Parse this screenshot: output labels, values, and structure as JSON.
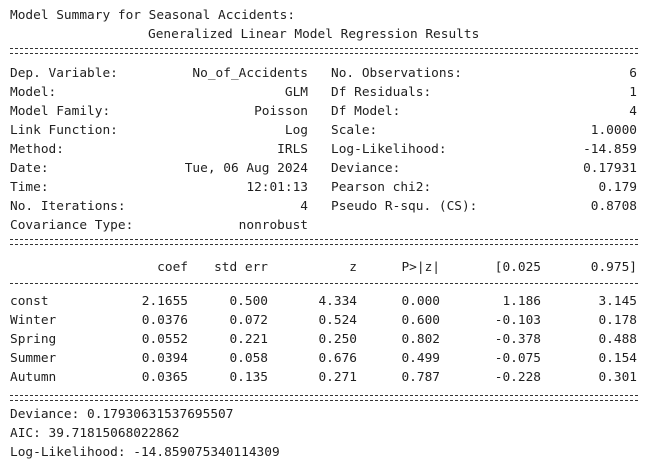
{
  "header": {
    "line1": "Model Summary for Seasonal Accidents:",
    "line2": "Generalized Linear Model Regression Results"
  },
  "info_left": [
    {
      "label": "Dep. Variable:",
      "value": "No_of_Accidents"
    },
    {
      "label": "Model:",
      "value": "GLM"
    },
    {
      "label": "Model Family:",
      "value": "Poisson"
    },
    {
      "label": "Link Function:",
      "value": "Log"
    },
    {
      "label": "Method:",
      "value": "IRLS"
    },
    {
      "label": "Date:",
      "value": "Tue, 06 Aug 2024"
    },
    {
      "label": "Time:",
      "value": "12:01:13"
    },
    {
      "label": "No. Iterations:",
      "value": "4"
    },
    {
      "label": "Covariance Type:",
      "value": "nonrobust"
    }
  ],
  "info_right": [
    {
      "label": "No. Observations:",
      "value": "6"
    },
    {
      "label": "Df Residuals:",
      "value": "1"
    },
    {
      "label": "Df Model:",
      "value": "4"
    },
    {
      "label": "Scale:",
      "value": "1.0000"
    },
    {
      "label": "Log-Likelihood:",
      "value": "-14.859"
    },
    {
      "label": "Deviance:",
      "value": "0.17931"
    },
    {
      "label": "Pearson chi2:",
      "value": "0.179"
    },
    {
      "label": "Pseudo R-squ. (CS):",
      "value": "0.8708"
    }
  ],
  "coef_table": {
    "headers": [
      "",
      "coef",
      "std err",
      "z",
      "P>|z|",
      "[0.025",
      "0.975]"
    ],
    "rows": [
      [
        "const",
        "2.1655",
        "0.500",
        "4.334",
        "0.000",
        "1.186",
        "3.145"
      ],
      [
        "Winter",
        "0.0376",
        "0.072",
        "0.524",
        "0.600",
        "-0.103",
        "0.178"
      ],
      [
        "Spring",
        "0.0552",
        "0.221",
        "0.250",
        "0.802",
        "-0.378",
        "0.488"
      ],
      [
        "Summer",
        "0.0394",
        "0.058",
        "0.676",
        "0.499",
        "-0.075",
        "0.154"
      ],
      [
        "Autumn",
        "0.0365",
        "0.135",
        "0.271",
        "0.787",
        "-0.228",
        "0.301"
      ]
    ]
  },
  "footer": {
    "deviance": "Deviance: 0.17930631537695507",
    "aic": "AIC: 39.71815068022862",
    "loglik": "Log-Likelihood: -14.859075340114309"
  }
}
